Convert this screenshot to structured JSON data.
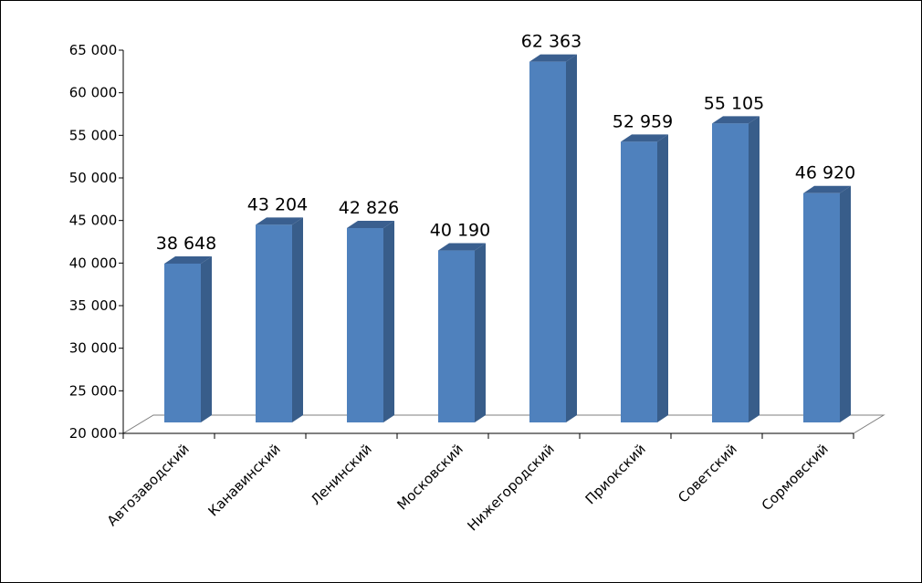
{
  "chart_data": {
    "type": "bar",
    "title": "",
    "xlabel": "",
    "ylabel": "",
    "ylim": [
      20000,
      65000
    ],
    "yticks": [
      "20 000",
      "25 000",
      "30 000",
      "35 000",
      "40 000",
      "45 000",
      "50 000",
      "55 000",
      "60 000",
      "65 000"
    ],
    "ytick_values": [
      20000,
      25000,
      30000,
      35000,
      40000,
      45000,
      50000,
      55000,
      60000,
      65000
    ],
    "categories": [
      "Автозаводский",
      "Канавинский",
      "Ленинский",
      "Московский",
      "Нижегородский",
      "Приокский",
      "Советский",
      "Сормовский"
    ],
    "values": [
      38648,
      43204,
      42826,
      40190,
      62363,
      52959,
      55105,
      46920
    ],
    "data_labels": [
      "38 648",
      "43 204",
      "42 826",
      "40 190",
      "62 363",
      "52 959",
      "55 105",
      "46 920"
    ],
    "grid": false,
    "legend": "none",
    "colors": {
      "bar_front": "#4f81bd",
      "bar_side": "#385d8a",
      "bar_top": "#3a5f8f",
      "floor_line": "#7f7f7f",
      "axis": "#000000"
    }
  }
}
